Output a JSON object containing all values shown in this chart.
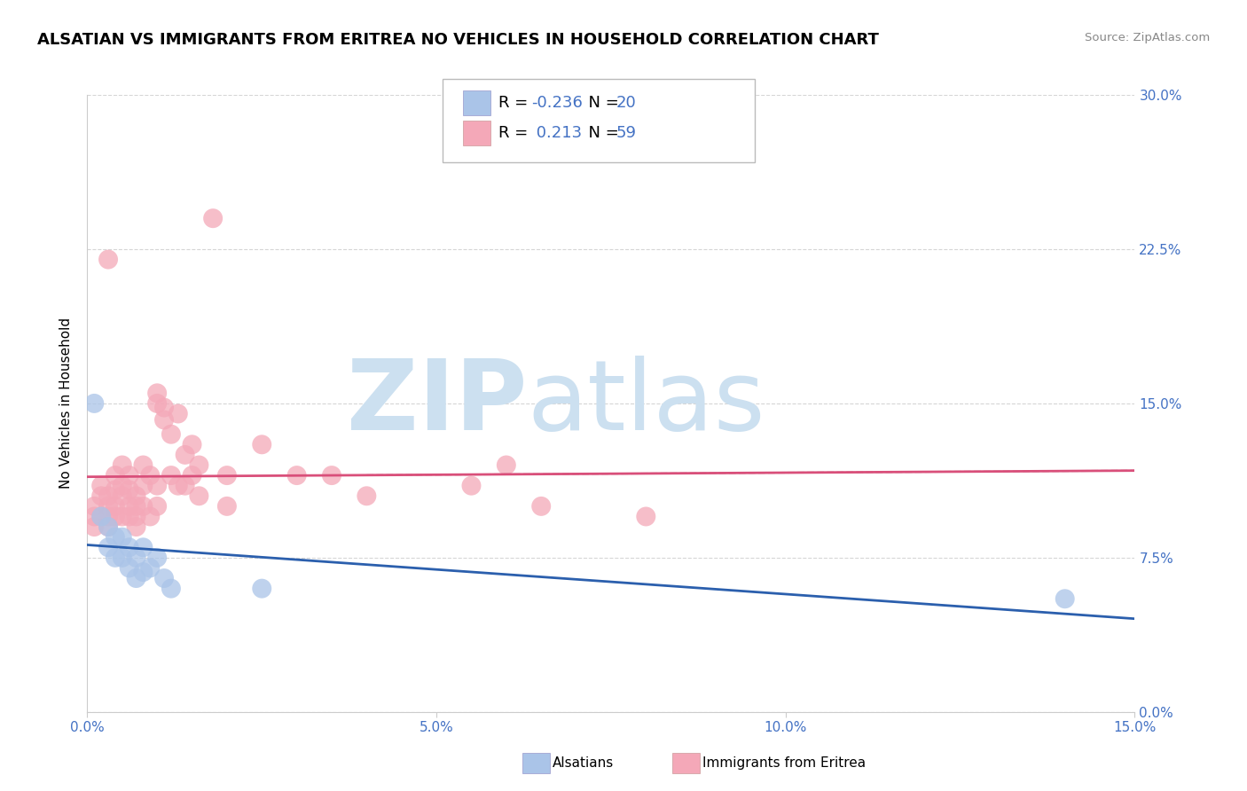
{
  "title": "ALSATIAN VS IMMIGRANTS FROM ERITREA NO VEHICLES IN HOUSEHOLD CORRELATION CHART",
  "source": "Source: ZipAtlas.com",
  "ylabel": "No Vehicles in Household",
  "xlim": [
    0.0,
    0.15
  ],
  "ylim": [
    0.0,
    0.3
  ],
  "xticks": [
    0.0,
    0.05,
    0.1,
    0.15
  ],
  "xtick_labels": [
    "0.0%",
    "5.0%",
    "10.0%",
    "15.0%"
  ],
  "yticks": [
    0.0,
    0.075,
    0.15,
    0.225,
    0.3
  ],
  "ytick_labels": [
    "0.0%",
    "7.5%",
    "15.0%",
    "22.5%",
    "30.0%"
  ],
  "legend_entries": [
    {
      "label": "Alsatians",
      "color": "#aac4e8",
      "R": -0.236,
      "N": 20
    },
    {
      "label": "Immigrants from Eritrea",
      "color": "#f4a8b8",
      "R": 0.213,
      "N": 59
    }
  ],
  "blue_scatter_x": [
    0.001,
    0.002,
    0.003,
    0.003,
    0.004,
    0.004,
    0.005,
    0.005,
    0.006,
    0.006,
    0.007,
    0.007,
    0.008,
    0.008,
    0.009,
    0.01,
    0.011,
    0.012,
    0.025,
    0.14
  ],
  "blue_scatter_y": [
    0.15,
    0.095,
    0.09,
    0.08,
    0.085,
    0.075,
    0.085,
    0.075,
    0.08,
    0.07,
    0.075,
    0.065,
    0.08,
    0.068,
    0.07,
    0.075,
    0.065,
    0.06,
    0.06,
    0.055
  ],
  "pink_scatter_x": [
    0.001,
    0.001,
    0.001,
    0.002,
    0.002,
    0.002,
    0.003,
    0.003,
    0.003,
    0.003,
    0.003,
    0.004,
    0.004,
    0.004,
    0.004,
    0.005,
    0.005,
    0.005,
    0.005,
    0.006,
    0.006,
    0.006,
    0.006,
    0.007,
    0.007,
    0.007,
    0.007,
    0.008,
    0.008,
    0.008,
    0.009,
    0.009,
    0.01,
    0.01,
    0.01,
    0.01,
    0.011,
    0.011,
    0.012,
    0.012,
    0.013,
    0.013,
    0.014,
    0.014,
    0.015,
    0.015,
    0.016,
    0.016,
    0.018,
    0.02,
    0.02,
    0.025,
    0.03,
    0.035,
    0.04,
    0.055,
    0.06,
    0.065,
    0.08
  ],
  "pink_scatter_y": [
    0.1,
    0.095,
    0.09,
    0.11,
    0.105,
    0.095,
    0.22,
    0.105,
    0.1,
    0.095,
    0.09,
    0.115,
    0.108,
    0.1,
    0.095,
    0.12,
    0.11,
    0.105,
    0.095,
    0.115,
    0.108,
    0.1,
    0.095,
    0.105,
    0.1,
    0.095,
    0.09,
    0.12,
    0.11,
    0.1,
    0.115,
    0.095,
    0.155,
    0.15,
    0.11,
    0.1,
    0.148,
    0.142,
    0.135,
    0.115,
    0.145,
    0.11,
    0.125,
    0.11,
    0.13,
    0.115,
    0.12,
    0.105,
    0.24,
    0.115,
    0.1,
    0.13,
    0.115,
    0.115,
    0.105,
    0.11,
    0.12,
    0.1,
    0.095
  ],
  "blue_line_color": "#2b5fad",
  "pink_line_color": "#d94f7a",
  "pink_dash_color": "#c8a0a8",
  "watermark_zip": "ZIP",
  "watermark_atlas": "atlas",
  "watermark_color": "#cce0f0",
  "background_color": "#ffffff",
  "grid_color": "#cccccc",
  "title_fontsize": 13,
  "axis_label_fontsize": 11,
  "tick_fontsize": 11,
  "tick_color": "#4472c4"
}
